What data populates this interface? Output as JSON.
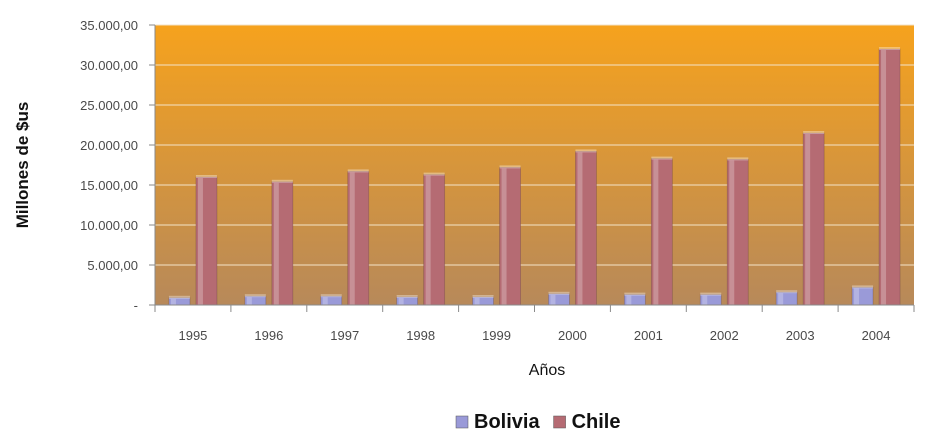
{
  "chart_data": {
    "type": "bar",
    "categories": [
      "1995",
      "1996",
      "1997",
      "1998",
      "1999",
      "2000",
      "2001",
      "2002",
      "2003",
      "2004"
    ],
    "series": [
      {
        "name": "Bolivia",
        "values": [
          900,
          1100,
          1100,
          1000,
          1000,
          1400,
          1300,
          1300,
          1600,
          2200
        ],
        "color": "#9a9ad8"
      },
      {
        "name": "Chile",
        "values": [
          16000,
          15400,
          16700,
          16300,
          17200,
          19200,
          18300,
          18200,
          21500,
          32000
        ],
        "color": "#b56b73"
      }
    ],
    "y_ticks": [
      "-",
      "5.000,00",
      "10.000,00",
      "15.000,00",
      "20.000,00",
      "25.000,00",
      "30.000,00",
      "35.000,00"
    ],
    "ylim": [
      0,
      35000
    ],
    "xlabel": "Años",
    "ylabel": "Millones de $us",
    "grid": true,
    "legend_position": "bottom",
    "background_gradient": [
      "#f6a21d",
      "#b7895a"
    ]
  }
}
